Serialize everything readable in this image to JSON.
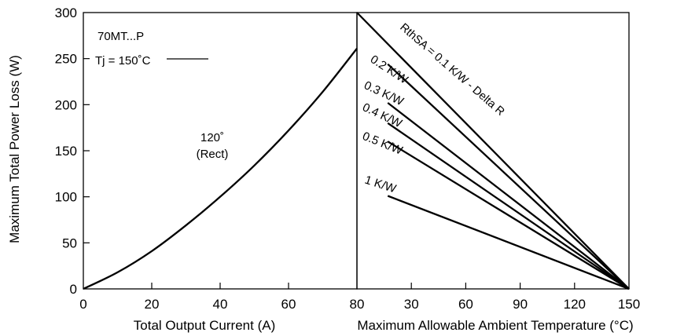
{
  "chart_data": [
    {
      "type": "line",
      "panel": "left",
      "xlabel": "Total Output Current (A)",
      "ylabel": "Maximum Total Power Loss (W)",
      "xlim": [
        0,
        80
      ],
      "ylim": [
        0,
        300
      ],
      "xticks": [
        "0",
        "20",
        "40",
        "60",
        "80"
      ],
      "yticks": [
        "0",
        "50",
        "100",
        "150",
        "200",
        "250",
        "300"
      ],
      "annotations": [
        "70MT...P",
        "Tj = 150˚C"
      ],
      "series": [
        {
          "name": "120˚ (Rect)",
          "label_lines": [
            "120˚",
            "(Rect)"
          ],
          "x": [
            0,
            10,
            20,
            30,
            40,
            50,
            60,
            70,
            80
          ],
          "y": [
            0,
            18,
            41,
            69,
            100,
            134,
            172,
            214,
            261
          ]
        }
      ]
    },
    {
      "type": "line",
      "panel": "right",
      "xlabel": "Maximum Allowable Ambient Temperature (°C)",
      "xlim": [
        0,
        150
      ],
      "ylim": [
        0,
        300
      ],
      "xticks": [
        "30",
        "60",
        "90",
        "120",
        "150"
      ],
      "series": [
        {
          "name": "RthSA = 0.1 K/W - Delta R",
          "x": [
            0,
            150
          ],
          "y": [
            300,
            0
          ]
        },
        {
          "name": "0.2 K/W",
          "x": [
            17,
            150
          ],
          "y": [
            244,
            0
          ]
        },
        {
          "name": "0.3 K/W",
          "x": [
            17,
            150
          ],
          "y": [
            202,
            0
          ]
        },
        {
          "name": "0.4 K/W",
          "x": [
            17,
            150
          ],
          "y": [
            180,
            0
          ]
        },
        {
          "name": "0.5 K/W",
          "x": [
            17,
            150
          ],
          "y": [
            160,
            0
          ]
        },
        {
          "name": "1 K/W",
          "x": [
            17,
            150
          ],
          "y": [
            101,
            0
          ]
        }
      ]
    }
  ]
}
